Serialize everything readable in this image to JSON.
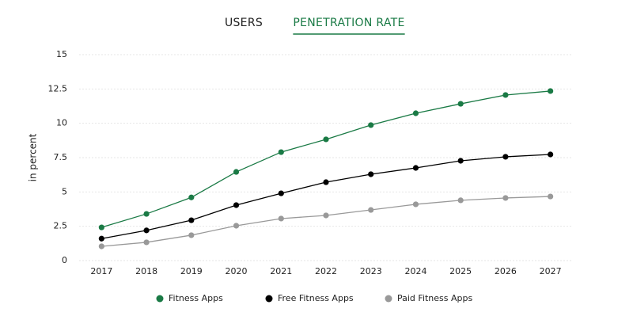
{
  "tabs": [
    "USERS",
    "PENETRATION RATE"
  ],
  "active_tab": 1,
  "chart_data": {
    "type": "line",
    "y_label": "in percent",
    "categories": [
      "2017",
      "2018",
      "2019",
      "2020",
      "2021",
      "2022",
      "2023",
      "2024",
      "2025",
      "2026",
      "2027"
    ],
    "series": [
      {
        "name": "Fitness Apps",
        "color": "#1a7a45",
        "values": [
          2.42,
          3.4,
          4.6,
          6.46,
          7.9,
          8.83,
          9.87,
          10.73,
          11.42,
          12.06,
          12.35
        ]
      },
      {
        "name": "Free Fitness Apps",
        "color": "#000000",
        "values": [
          1.6,
          2.2,
          2.94,
          4.04,
          4.9,
          5.71,
          6.29,
          6.75,
          7.27,
          7.56,
          7.73
        ]
      },
      {
        "name": "Paid Fitness Apps",
        "color": "#999999",
        "values": [
          1.04,
          1.33,
          1.85,
          2.54,
          3.06,
          3.29,
          3.69,
          4.1,
          4.39,
          4.56,
          4.67
        ]
      }
    ],
    "ylim": [
      0,
      15
    ],
    "yticks": [
      0,
      2.5,
      5,
      7.5,
      10,
      12.5,
      15
    ],
    "grid": true
  }
}
